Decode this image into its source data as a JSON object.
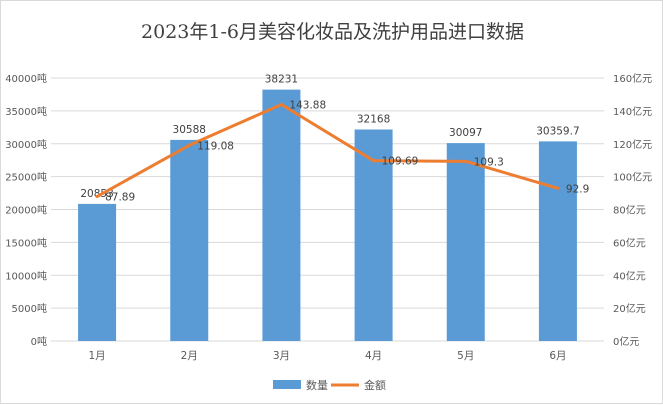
{
  "chart_data": {
    "type": "bar",
    "title": "2023年1-6月美容化妆品及洗护用品进口数据",
    "categories": [
      "1月",
      "2月",
      "3月",
      "4月",
      "5月",
      "6月"
    ],
    "series": [
      {
        "name": "数量",
        "type": "bar",
        "axis": "left",
        "color": "#5b9bd5",
        "values": [
          20853,
          30588,
          38231,
          32168,
          30097,
          30359.7
        ],
        "labels": [
          "20853",
          "30588",
          "38231",
          "32168",
          "30097",
          "30359.7"
        ]
      },
      {
        "name": "金额",
        "type": "line",
        "axis": "right",
        "color": "#ed7d31",
        "values": [
          87.89,
          119.08,
          143.88,
          109.69,
          109.3,
          92.9
        ],
        "labels": [
          "87.89",
          "119.08",
          "143.88",
          "109.69",
          "109.3",
          "92.9"
        ]
      }
    ],
    "y_left": {
      "min": 0,
      "max": 40000,
      "step": 5000,
      "unit": "吨"
    },
    "y_right": {
      "min": 0,
      "max": 160,
      "step": 20,
      "unit": "亿元"
    },
    "grid": true,
    "legend_position": "bottom"
  }
}
